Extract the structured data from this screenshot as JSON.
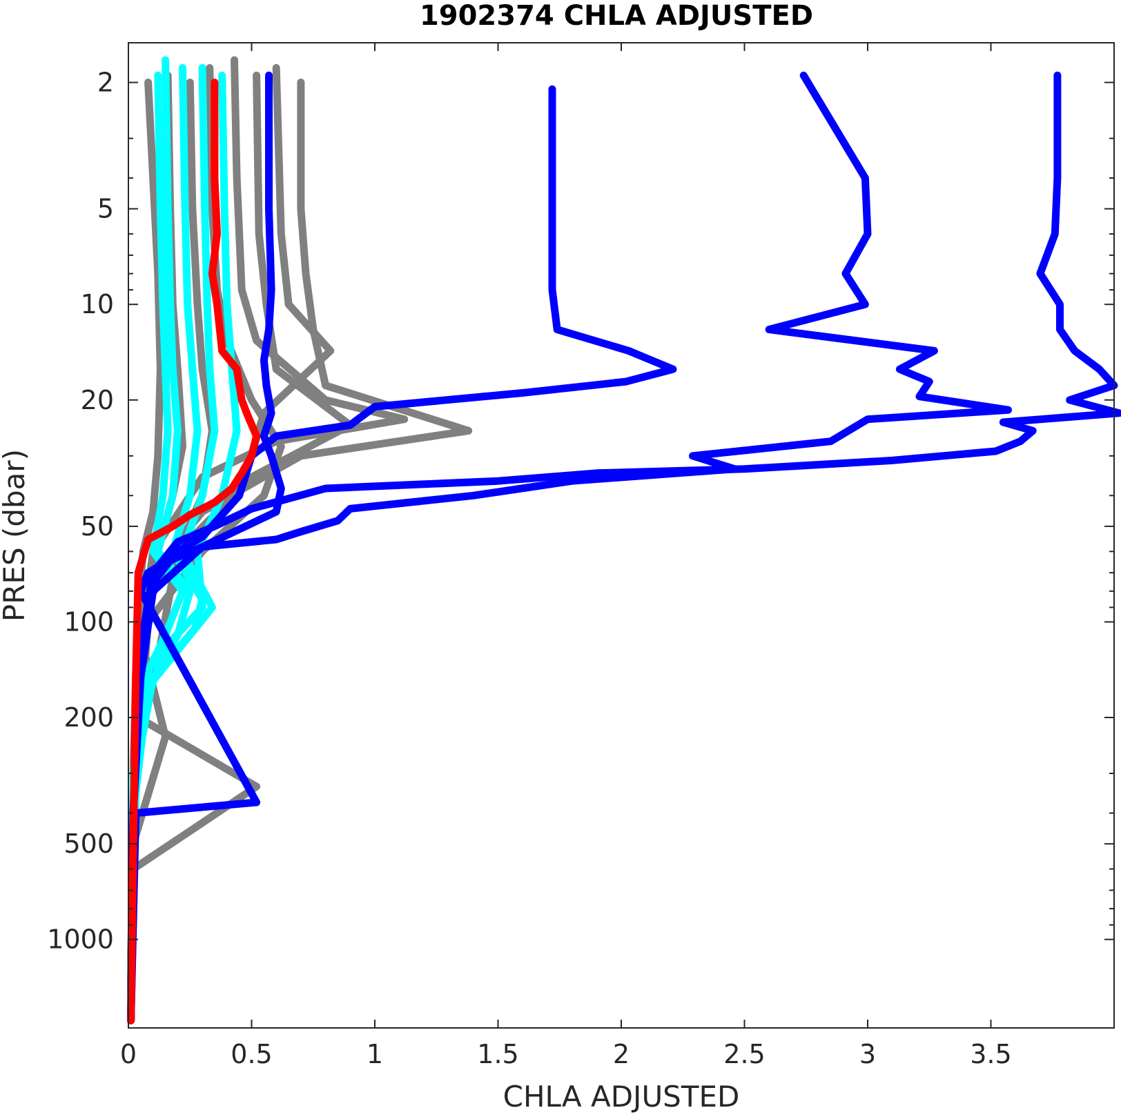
{
  "chart_data": {
    "type": "line",
    "title": "1902374  CHLA ADJUSTED",
    "xlabel": "CHLA ADJUSTED",
    "ylabel": "PRES (dbar)",
    "xlim": [
      0,
      4.0
    ],
    "ylim": [
      1.5,
      1900
    ],
    "y_scale": "log",
    "y_reversed": true,
    "grid": false,
    "x_ticks": [
      0,
      0.5,
      1,
      1.5,
      2,
      2.5,
      3,
      3.5
    ],
    "x_tick_labels": [
      "0",
      "0.5",
      "1",
      "1.5",
      "2",
      "2.5",
      "3",
      "3.5"
    ],
    "y_ticks": [
      2,
      5,
      10,
      20,
      50,
      100,
      200,
      500,
      1000
    ],
    "y_tick_labels": [
      "2",
      "5",
      "10",
      "20",
      "50",
      "100",
      "200",
      "500",
      "1000"
    ],
    "colors": {
      "gray": "#808080",
      "cyan": "#00ffff",
      "blue": "#0000ff",
      "red": "#ff0000"
    },
    "series": [
      {
        "color": "gray",
        "x": [
          0.08,
          0.1,
          0.12,
          0.13,
          0.12,
          0.1,
          0.06,
          0.04,
          0.03,
          0.02,
          0.02,
          0.01,
          0.01
        ],
        "y": [
          2,
          4,
          8,
          16,
          30,
          45,
          60,
          90,
          150,
          300,
          600,
          1100,
          1800
        ]
      },
      {
        "color": "gray",
        "x": [
          0.43,
          0.44,
          0.46,
          0.52,
          0.8,
          1.12,
          0.6,
          0.3,
          0.1,
          0.05,
          0.03,
          0.02,
          0.01
        ],
        "y": [
          1.7,
          4,
          9,
          13,
          20,
          23,
          27,
          35,
          60,
          120,
          300,
          800,
          1800
        ]
      },
      {
        "color": "gray",
        "x": [
          0.7,
          0.7,
          0.72,
          0.75,
          0.8,
          1.38,
          0.7,
          0.3,
          0.1,
          0.04,
          0.02,
          0.01
        ],
        "y": [
          2,
          5,
          8,
          12,
          18,
          25,
          30,
          45,
          70,
          130,
          400,
          1800
        ]
      },
      {
        "color": "gray",
        "x": [
          0.6,
          0.62,
          0.65,
          0.82,
          0.55,
          0.45,
          0.2,
          0.06,
          0.02,
          0.01
        ],
        "y": [
          1.8,
          6,
          10,
          14,
          22,
          40,
          60,
          90,
          400,
          1800
        ]
      },
      {
        "color": "gray",
        "x": [
          0.33,
          0.34,
          0.36,
          0.4,
          0.5,
          0.62,
          0.55,
          0.3,
          0.08,
          0.02,
          0.01
        ],
        "y": [
          1.8,
          5,
          9,
          13,
          20,
          28,
          40,
          60,
          100,
          400,
          1800
        ]
      },
      {
        "color": "gray",
        "x": [
          0.52,
          0.53,
          0.56,
          0.6,
          0.9,
          0.5,
          0.25,
          0.08,
          0.03,
          0.01
        ],
        "y": [
          1.9,
          6,
          10,
          16,
          24,
          35,
          55,
          85,
          300,
          1800
        ]
      },
      {
        "color": "gray",
        "x": [
          0.25,
          0.26,
          0.28,
          0.3,
          0.34,
          0.3,
          0.2,
          0.12,
          0.04,
          0.52,
          0.02,
          0.01
        ],
        "y": [
          2,
          5,
          10,
          16,
          25,
          40,
          60,
          130,
          200,
          330,
          600,
          1800
        ]
      },
      {
        "color": "gray",
        "x": [
          0.16,
          0.17,
          0.18,
          0.2,
          0.22,
          0.18,
          0.12,
          0.06,
          0.15,
          0.02,
          0.01
        ],
        "y": [
          1.9,
          5,
          10,
          16,
          28,
          40,
          60,
          120,
          230,
          500,
          1800
        ]
      },
      {
        "color": "cyan",
        "x": [
          0.15,
          0.16,
          0.17,
          0.18,
          0.2,
          0.18,
          0.12,
          0.25,
          0.2,
          0.08,
          0.03,
          0.01
        ],
        "y": [
          1.7,
          5,
          10,
          16,
          25,
          40,
          60,
          80,
          110,
          160,
          300,
          1800
        ]
      },
      {
        "color": "cyan",
        "x": [
          0.22,
          0.23,
          0.24,
          0.26,
          0.28,
          0.25,
          0.18,
          0.3,
          0.27,
          0.1,
          0.03,
          0.01
        ],
        "y": [
          1.8,
          5,
          10,
          16,
          25,
          40,
          60,
          85,
          105,
          150,
          300,
          1800
        ]
      },
      {
        "color": "cyan",
        "x": [
          0.3,
          0.31,
          0.32,
          0.33,
          0.35,
          0.3,
          0.22,
          0.34,
          0.25,
          0.08,
          0.02,
          0.01
        ],
        "y": [
          1.8,
          5,
          10,
          16,
          25,
          40,
          60,
          90,
          110,
          160,
          400,
          1800
        ]
      },
      {
        "color": "cyan",
        "x": [
          0.38,
          0.39,
          0.4,
          0.42,
          0.44,
          0.38,
          0.28,
          0.3,
          0.15,
          0.05,
          0.02,
          0.01
        ],
        "y": [
          1.9,
          5,
          10,
          16,
          25,
          40,
          60,
          90,
          120,
          200,
          400,
          1800
        ]
      },
      {
        "color": "cyan",
        "x": [
          0.12,
          0.13,
          0.14,
          0.15,
          0.16,
          0.14,
          0.1,
          0.22,
          0.15,
          0.05,
          0.02,
          0.01
        ],
        "y": [
          1.9,
          5,
          10,
          16,
          25,
          40,
          60,
          80,
          110,
          160,
          300,
          1800
        ]
      },
      {
        "color": "blue",
        "x": [
          0.57,
          0.57,
          0.58,
          0.57,
          0.55,
          0.56,
          0.58,
          0.55,
          0.58,
          0.62,
          0.6,
          0.3,
          0.1,
          0.05,
          0.02,
          0.01
        ],
        "y": [
          1.9,
          5,
          9,
          12,
          15,
          18,
          22,
          26,
          30,
          38,
          45,
          58,
          80,
          150,
          400,
          1800
        ]
      },
      {
        "color": "blue",
        "x": [
          1.72,
          1.72,
          1.72,
          1.74,
          2.03,
          2.21,
          2.02,
          1.6,
          1.0,
          0.9,
          0.6,
          0.5,
          0.45,
          0.3,
          0.2,
          0.1,
          0.05,
          0.02,
          0.01
        ],
        "y": [
          2.1,
          5,
          9,
          12,
          14,
          16,
          17.5,
          19,
          21,
          24,
          26,
          30,
          40,
          54,
          60,
          75,
          120,
          400,
          1800
        ]
      },
      {
        "color": "blue",
        "x": [
          2.74,
          2.99,
          3.0,
          2.91,
          2.99,
          2.6,
          3.27,
          3.13,
          3.25,
          3.21,
          3.57,
          3.0,
          2.85,
          2.29,
          2.46,
          1.8,
          1.4,
          0.9,
          0.85,
          0.7,
          0.6,
          0.3,
          0.15,
          0.08,
          0.05,
          0.52,
          0.03,
          0.01
        ],
        "y": [
          1.9,
          4,
          6,
          8,
          10,
          12,
          14,
          16,
          17.5,
          19.5,
          21.5,
          23,
          27,
          30,
          33,
          36,
          40,
          44,
          48,
          52,
          55,
          58,
          65,
          70,
          80,
          370,
          400,
          1800
        ]
      },
      {
        "color": "blue",
        "x": [
          3.77,
          3.77,
          3.76,
          3.7,
          3.78,
          3.78,
          3.84,
          3.94,
          4.0,
          3.82,
          4.02,
          3.55,
          3.67,
          3.62,
          3.52,
          3.1,
          2.5,
          1.9,
          1.5,
          0.8,
          0.5,
          0.35,
          0.2,
          0.1,
          0.05,
          0.02,
          0.01
        ],
        "y": [
          1.9,
          4,
          6,
          8,
          10,
          12,
          14,
          16,
          18,
          20,
          22,
          23.5,
          25,
          27,
          29,
          31,
          33,
          34,
          36,
          38,
          44,
          50,
          56,
          70,
          120,
          400,
          1800
        ]
      },
      {
        "color": "red",
        "x": [
          0.35,
          0.35,
          0.36,
          0.34,
          0.36,
          0.38,
          0.44,
          0.46,
          0.48,
          0.52,
          0.5,
          0.46,
          0.42,
          0.35,
          0.25,
          0.18,
          0.08,
          0.04,
          0.03,
          0.02,
          0.01
        ],
        "y": [
          2,
          4,
          6,
          8,
          10,
          14,
          16,
          20,
          22,
          26,
          30,
          34,
          38,
          42,
          46,
          50,
          55,
          70,
          150,
          500,
          1800
        ]
      }
    ]
  }
}
